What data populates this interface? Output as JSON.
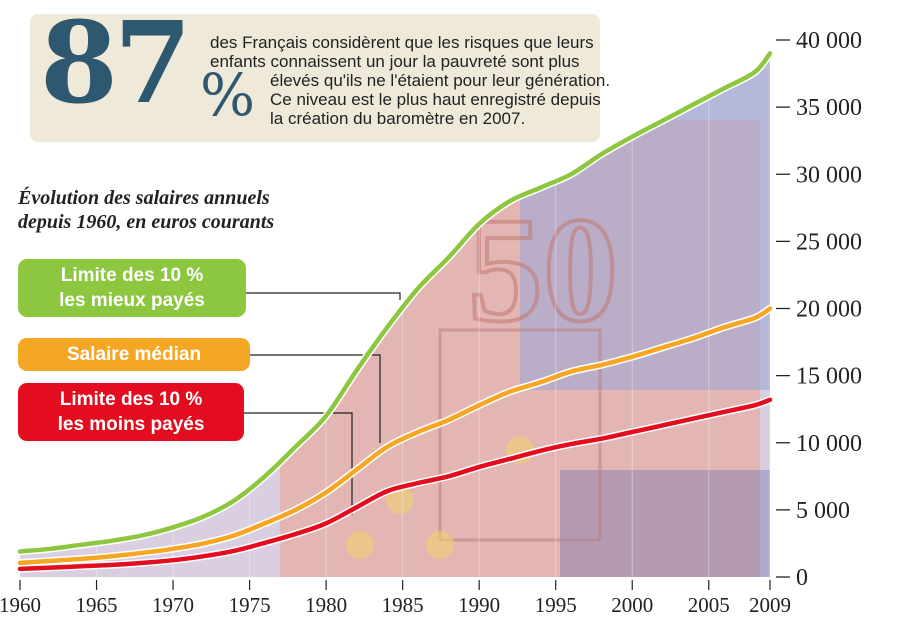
{
  "callout": {
    "big_number": "87",
    "percent_sign": "%",
    "lines": [
      "des Français considèrent que les risques que leurs",
      "enfants connaissent un jour la pauvreté sont plus",
      "élevés qu'ils ne l'étaient pour leur génération.",
      "Ce niveau est le plus haut enregistré depuis",
      "la création du baromètre en 2007."
    ]
  },
  "subtitle": {
    "line1": "Évolution des salaires annuels",
    "line2": "depuis 1960, en euros courants"
  },
  "legend": {
    "top": {
      "line1": "Limite des 10 %",
      "line2": "les mieux payés"
    },
    "median": {
      "line1": "Salaire médian"
    },
    "low": {
      "line1": "Limite des 10 %",
      "line2": "les moins payés"
    }
  },
  "colors": {
    "top": "#8dc63f",
    "median": "#f5a623",
    "low": "#e30d1f",
    "callout_number": "#2e5870",
    "callout_bg": "#efe9d9"
  },
  "chart_data": {
    "type": "line",
    "title": "Évolution des salaires annuels depuis 1960, en euros courants",
    "xlabel": "",
    "ylabel": "",
    "xlim": [
      1960,
      2009
    ],
    "ylim": [
      0,
      40000
    ],
    "x_ticks": [
      1960,
      1965,
      1970,
      1975,
      1980,
      1985,
      1990,
      1995,
      2000,
      2005,
      2009
    ],
    "x_tick_labels": [
      "1960",
      "1965",
      "1970",
      "1975",
      "1980",
      "1985",
      "1990",
      "1995",
      "2000",
      "2005",
      "2009"
    ],
    "y_ticks": [
      0,
      5000,
      10000,
      15000,
      20000,
      25000,
      30000,
      35000,
      40000
    ],
    "y_tick_labels": [
      "0",
      "5 000",
      "10 000",
      "15 000",
      "20 000",
      "25 000",
      "30 000",
      "35 000",
      "40 000"
    ],
    "x": [
      1960,
      1962,
      1964,
      1966,
      1968,
      1970,
      1972,
      1974,
      1976,
      1978,
      1980,
      1982,
      1984,
      1986,
      1988,
      1990,
      1992,
      1994,
      1996,
      1998,
      2000,
      2002,
      2004,
      2006,
      2008,
      2009
    ],
    "series": [
      {
        "name": "Limite des 10 % les mieux payés",
        "key": "top",
        "values": [
          1900,
          2100,
          2400,
          2700,
          3100,
          3700,
          4500,
          5700,
          7500,
          9700,
          12000,
          15400,
          18600,
          21500,
          23800,
          26300,
          28000,
          29000,
          30000,
          31500,
          32800,
          34000,
          35200,
          36400,
          37600,
          39000
        ]
      },
      {
        "name": "Salaire médian",
        "key": "median",
        "values": [
          1050,
          1200,
          1350,
          1550,
          1800,
          2100,
          2500,
          3100,
          4000,
          5000,
          6300,
          8000,
          9700,
          10800,
          11700,
          12800,
          13800,
          14500,
          15300,
          15800,
          16400,
          17100,
          17800,
          18600,
          19300,
          20000
        ]
      },
      {
        "name": "Limite des 10 % les moins payés",
        "key": "low",
        "values": [
          600,
          700,
          800,
          900,
          1050,
          1250,
          1550,
          1950,
          2550,
          3200,
          4000,
          5200,
          6400,
          7000,
          7500,
          8200,
          8800,
          9400,
          9900,
          10300,
          10800,
          11300,
          11800,
          12300,
          12800,
          13200
        ]
      }
    ]
  }
}
